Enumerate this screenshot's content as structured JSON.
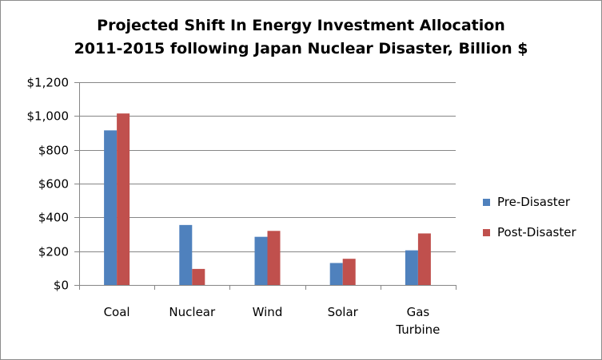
{
  "chart_data": {
    "type": "bar",
    "title_lines": [
      "Projected Shift In Energy Investment Allocation",
      "2011-2015 following Japan Nuclear Disaster, Billion $"
    ],
    "categories": [
      [
        "Coal"
      ],
      [
        "Nuclear"
      ],
      [
        "Wind"
      ],
      [
        "Solar"
      ],
      [
        "Gas",
        "Turbine"
      ]
    ],
    "series": [
      {
        "name": "Pre-Disaster",
        "color": "#4f81bd",
        "values": [
          915,
          355,
          285,
          130,
          205
        ]
      },
      {
        "name": "Post-Disaster",
        "color": "#c0504d",
        "values": [
          1015,
          95,
          320,
          155,
          305
        ]
      }
    ],
    "ylim": [
      0,
      1200
    ],
    "yticks": [
      0,
      200,
      400,
      600,
      800,
      1000,
      1200
    ],
    "ytick_labels": [
      "$0",
      "$200",
      "$400",
      "$600",
      "$800",
      "$1,000",
      "$1,200"
    ],
    "grid": true,
    "legend_position": "right"
  }
}
